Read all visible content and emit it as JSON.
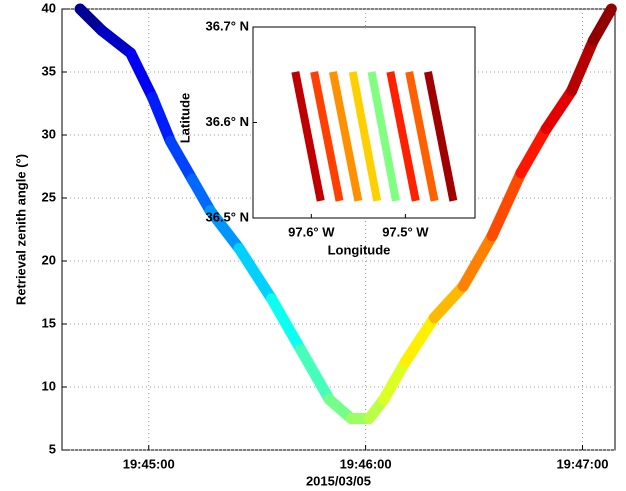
{
  "chart_data": [
    {
      "type": "line",
      "ylabel": "Retrieval zenith angle (°)",
      "xlabel": "2015/03/05",
      "colormap": "jet",
      "grid": true,
      "x": [
        "19:44:41",
        "19:44:47",
        "19:44:55",
        "19:45:01",
        "19:45:06",
        "19:45:12",
        "19:45:17",
        "19:45:25",
        "19:45:34",
        "19:45:42",
        "19:45:50",
        "19:45:56",
        "19:46:01",
        "19:46:05",
        "19:46:11",
        "19:46:19",
        "19:46:27",
        "19:46:35",
        "19:46:43",
        "19:46:50",
        "19:46:57",
        "19:47:03",
        "19:47:08"
      ],
      "values": [
        40,
        38.3,
        36.5,
        33,
        29.5,
        26.5,
        24,
        21,
        17,
        13,
        9,
        7.5,
        7.5,
        9,
        12,
        15.5,
        18,
        22,
        27,
        30.5,
        33.5,
        37.5,
        40
      ],
      "xlim": [
        "19:44:36",
        "19:47:09"
      ],
      "xticks": [
        "19:45:00",
        "19:46:00",
        "19:47:00"
      ],
      "ylim": [
        5,
        40
      ],
      "yticks": [
        5,
        10,
        15,
        20,
        25,
        30,
        35,
        40
      ]
    },
    {
      "type": "tracks",
      "xlabel": "Longitude",
      "ylabel": "Latitude",
      "xlim": [
        -97.662,
        -97.426
      ],
      "ylim": [
        36.5,
        36.7
      ],
      "xticks": [
        {
          "value": -97.6,
          "label": "97.6° W"
        },
        {
          "value": -97.5,
          "label": "97.5° W"
        }
      ],
      "yticks": [
        {
          "value": 36.5,
          "label": "36.5° N"
        },
        {
          "value": 36.6,
          "label": "36.6° N"
        },
        {
          "value": 36.7,
          "label": "36.7° N"
        }
      ],
      "tracks": [
        {
          "color": "#c00000",
          "lon": [
            -97.617,
            -97.59
          ],
          "lat": [
            36.653,
            36.518
          ]
        },
        {
          "color": "#ff4000",
          "lon": [
            -97.597,
            -97.57
          ],
          "lat": [
            36.653,
            36.518
          ]
        },
        {
          "color": "#ff9000",
          "lon": [
            -97.577,
            -97.55
          ],
          "lat": [
            36.653,
            36.518
          ]
        },
        {
          "color": "#ffd000",
          "lon": [
            -97.556,
            -97.53
          ],
          "lat": [
            36.653,
            36.518
          ]
        },
        {
          "color": "#80ff80",
          "lon": [
            -97.536,
            -97.51
          ],
          "lat": [
            36.653,
            36.518
          ]
        },
        {
          "color": "#ff2000",
          "lon": [
            -97.516,
            -97.489
          ],
          "lat": [
            36.653,
            36.518
          ]
        },
        {
          "color": "#ff6000",
          "lon": [
            -97.496,
            -97.469
          ],
          "lat": [
            36.653,
            36.518
          ]
        },
        {
          "color": "#a00000",
          "lon": [
            -97.476,
            -97.449
          ],
          "lat": [
            36.653,
            36.518
          ]
        }
      ]
    }
  ]
}
